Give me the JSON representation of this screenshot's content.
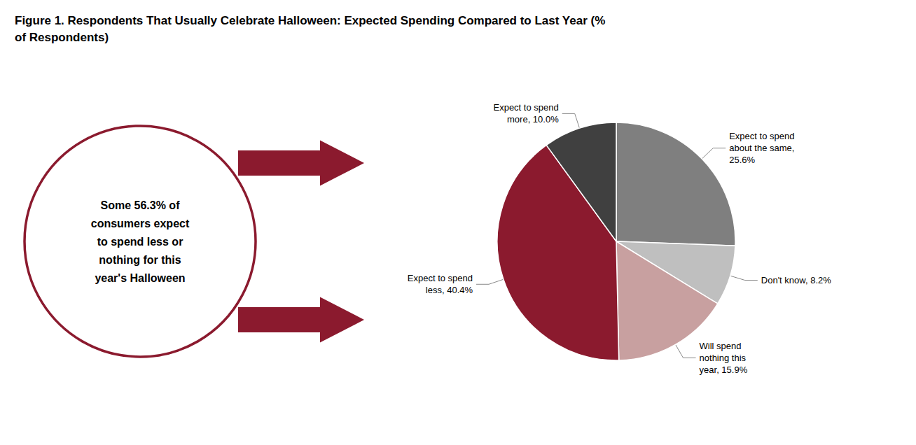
{
  "chart_data": {
    "type": "pie",
    "title": "Figure 1. Respondents That Usually Celebrate Halloween: Expected Spending Compared to Last Year (%\nof Respondents)",
    "categories": [
      "Expect to spend\nabout the same,\n25.6%",
      "Don't know, 8.2%",
      "Will spend\nnothing this\nyear, 15.9%",
      "Expect to spend\nless, 40.4%",
      "Expect to spend\nmore, 10.0%"
    ],
    "values": [
      25.6,
      8.2,
      15.9,
      40.4,
      10.0
    ],
    "colors": [
      "#7f7f7f",
      "#bfbfbf",
      "#c8a0a0",
      "#8b1a2e",
      "#404040"
    ],
    "annotations": [
      {
        "text": "Some 56.3% of\nconsumers expect\nto spend less or\nnothing for this\nyear's Halloween",
        "color": "#8b1a2e"
      }
    ]
  }
}
